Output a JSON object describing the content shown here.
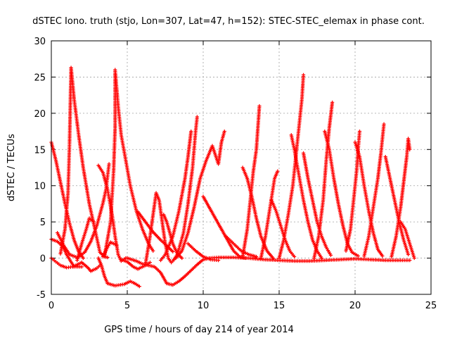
{
  "chart_data": {
    "type": "scatter",
    "title": "dSTEC Iono. truth (stjo, Lon=307, Lat=47, h=152): STEC-STEC_elemax in phase cont.",
    "xlabel": "GPS time / hours of day 214 of year 2014",
    "ylabel": "dSTEC  / TECUs",
    "xlim": [
      0,
      25
    ],
    "ylim": [
      -5,
      30
    ],
    "xticks": [
      "0",
      "5",
      "10",
      "15",
      "20",
      "25"
    ],
    "yticks": [
      "-5",
      "0",
      "5",
      "10",
      "15",
      "20",
      "25",
      "30"
    ],
    "grid": true,
    "marker": "+",
    "color": "#ff0000",
    "series": [
      {
        "points": [
          [
            0.0,
            16.0
          ],
          [
            0.3,
            13.5
          ],
          [
            0.6,
            10.5
          ],
          [
            0.9,
            7.5
          ],
          [
            1.2,
            4.8
          ],
          [
            1.5,
            2.5
          ],
          [
            1.8,
            0.9
          ],
          [
            2.1,
            0.0
          ]
        ]
      },
      {
        "points": [
          [
            0.0,
            2.6
          ],
          [
            0.4,
            2.3
          ],
          [
            0.8,
            1.5
          ],
          [
            1.0,
            0.5
          ],
          [
            1.5,
            -1.2
          ],
          [
            2.0,
            -1.2
          ]
        ]
      },
      {
        "points": [
          [
            0.0,
            0.0
          ],
          [
            0.3,
            -0.5
          ],
          [
            0.6,
            -1.0
          ],
          [
            1.0,
            -1.3
          ],
          [
            1.4,
            -1.2
          ],
          [
            1.8,
            -0.8
          ],
          [
            2.0,
            -0.6
          ]
        ]
      },
      {
        "points": [
          [
            0.4,
            3.5
          ],
          [
            0.8,
            1.8
          ],
          [
            1.2,
            0.5
          ],
          [
            1.7,
            0.1
          ],
          [
            2.2,
            0.8
          ],
          [
            2.6,
            2.3
          ],
          [
            3.0,
            4.5
          ],
          [
            3.4,
            7.6
          ],
          [
            3.6,
            9.5
          ],
          [
            3.8,
            13.0
          ]
        ]
      },
      {
        "points": [
          [
            0.6,
            0.6
          ],
          [
            0.9,
            4.0
          ],
          [
            1.1,
            9.0
          ],
          [
            1.2,
            16.0
          ],
          [
            1.3,
            26.3
          ],
          [
            1.5,
            22.0
          ],
          [
            1.8,
            17.0
          ],
          [
            2.1,
            12.5
          ],
          [
            2.5,
            7.5
          ],
          [
            2.9,
            3.7
          ],
          [
            3.2,
            0.8
          ],
          [
            3.5,
            0.2
          ],
          [
            3.7,
            0.1
          ]
        ]
      },
      {
        "points": [
          [
            2.0,
            -0.6
          ],
          [
            2.4,
            -1.3
          ],
          [
            2.6,
            -1.8
          ],
          [
            3.0,
            -1.4
          ],
          [
            3.2,
            -1.0
          ]
        ]
      },
      {
        "points": [
          [
            1.7,
            -0.3
          ],
          [
            2.0,
            2.0
          ],
          [
            2.3,
            4.0
          ],
          [
            2.5,
            5.5
          ],
          [
            2.8,
            5.0
          ]
        ]
      },
      {
        "points": [
          [
            3.1,
            12.8
          ],
          [
            3.4,
            11.8
          ],
          [
            3.7,
            9.5
          ],
          [
            4.0,
            6.0
          ],
          [
            4.2,
            3.0
          ],
          [
            4.4,
            0.5
          ],
          [
            4.6,
            -0.4
          ],
          [
            4.9,
            0.0
          ]
        ]
      },
      {
        "points": [
          [
            3.4,
            0.2
          ],
          [
            3.7,
            1.5
          ],
          [
            3.9,
            2.2
          ],
          [
            4.1,
            2.0
          ],
          [
            4.3,
            1.8
          ]
        ]
      },
      {
        "points": [
          [
            3.1,
            0.0
          ],
          [
            3.3,
            -1.0
          ],
          [
            3.5,
            -2.5
          ],
          [
            3.7,
            -3.5
          ],
          [
            4.2,
            -3.8
          ],
          [
            4.8,
            -3.6
          ],
          [
            5.2,
            -3.2
          ],
          [
            5.5,
            -3.5
          ],
          [
            5.8,
            -3.9
          ]
        ]
      },
      {
        "points": [
          [
            3.5,
            0.3
          ],
          [
            3.9,
            5.0
          ],
          [
            4.1,
            12.0
          ],
          [
            4.2,
            18.0
          ],
          [
            4.2,
            26.0
          ],
          [
            4.4,
            21.0
          ],
          [
            4.6,
            17.0
          ],
          [
            4.9,
            13.5
          ],
          [
            5.2,
            10.0
          ],
          [
            5.6,
            6.5
          ],
          [
            6.0,
            4.0
          ],
          [
            6.4,
            2.0
          ],
          [
            6.7,
            1.0
          ]
        ]
      },
      {
        "points": [
          [
            4.6,
            -0.2
          ],
          [
            5.0,
            -0.5
          ],
          [
            5.4,
            -1.2
          ],
          [
            5.7,
            -1.5
          ],
          [
            6.2,
            -1.0
          ],
          [
            6.5,
            -0.6
          ]
        ]
      },
      {
        "points": [
          [
            5.7,
            6.4
          ],
          [
            6.2,
            5.0
          ],
          [
            6.7,
            3.6
          ],
          [
            7.2,
            2.5
          ],
          [
            7.7,
            1.5
          ],
          [
            8.0,
            0.9
          ]
        ]
      },
      {
        "points": [
          [
            5.0,
            0.0
          ],
          [
            5.6,
            -0.4
          ],
          [
            6.0,
            -0.8
          ],
          [
            6.4,
            -1.0
          ],
          [
            6.8,
            -1.2
          ],
          [
            7.2,
            -2.0
          ],
          [
            7.6,
            -3.5
          ],
          [
            8.0,
            -3.7
          ],
          [
            8.4,
            -3.2
          ],
          [
            8.8,
            -2.5
          ],
          [
            9.2,
            -1.7
          ],
          [
            9.6,
            -0.9
          ],
          [
            10.0,
            -0.2
          ],
          [
            10.4,
            0.0
          ]
        ]
      },
      {
        "points": [
          [
            6.2,
            -0.8
          ],
          [
            6.5,
            3.0
          ],
          [
            6.7,
            6.0
          ],
          [
            6.9,
            9.0
          ],
          [
            7.1,
            8.0
          ],
          [
            7.3,
            5.0
          ],
          [
            7.5,
            2.0
          ],
          [
            7.7,
            0.0
          ],
          [
            7.9,
            -0.6
          ]
        ]
      },
      {
        "points": [
          [
            7.4,
            6.0
          ],
          [
            7.6,
            5.0
          ],
          [
            7.8,
            3.5
          ],
          [
            8.0,
            2.0
          ],
          [
            8.3,
            0.6
          ],
          [
            8.6,
            0.0
          ]
        ]
      },
      {
        "points": [
          [
            7.2,
            -0.3
          ],
          [
            7.5,
            0.5
          ],
          [
            8.0,
            3.0
          ],
          [
            8.4,
            6.5
          ],
          [
            8.8,
            11.0
          ],
          [
            9.0,
            14.0
          ],
          [
            9.2,
            17.5
          ]
        ]
      },
      {
        "points": [
          [
            8.0,
            -0.4
          ],
          [
            8.3,
            0.5
          ],
          [
            8.7,
            3.5
          ],
          [
            9.0,
            7.5
          ],
          [
            9.3,
            12.5
          ],
          [
            9.4,
            15.0
          ],
          [
            9.5,
            17.5
          ],
          [
            9.6,
            19.5
          ]
        ]
      },
      {
        "points": [
          [
            9.0,
            2.0
          ],
          [
            9.5,
            1.0
          ],
          [
            10.0,
            0.2
          ],
          [
            10.5,
            -0.2
          ],
          [
            11.0,
            -0.3
          ]
        ]
      },
      {
        "points": [
          [
            8.2,
            0.0
          ],
          [
            8.6,
            1.0
          ],
          [
            9.0,
            3.5
          ],
          [
            9.4,
            7.0
          ],
          [
            9.8,
            11.0
          ],
          [
            10.2,
            13.5
          ],
          [
            10.6,
            15.5
          ],
          [
            11.0,
            13.0
          ],
          [
            11.2,
            16.0
          ],
          [
            11.4,
            17.5
          ]
        ]
      },
      {
        "points": [
          [
            10.0,
            8.5
          ],
          [
            10.4,
            7.0
          ],
          [
            10.8,
            5.5
          ],
          [
            11.2,
            4.0
          ],
          [
            11.6,
            2.5
          ],
          [
            12.0,
            1.0
          ],
          [
            12.4,
            0.2
          ],
          [
            12.8,
            0.0
          ]
        ]
      },
      {
        "points": [
          [
            10.4,
            0.0
          ],
          [
            11.0,
            0.1
          ],
          [
            12.0,
            0.1
          ],
          [
            13.0,
            0.0
          ],
          [
            14.0,
            -0.2
          ],
          [
            15.0,
            -0.3
          ],
          [
            16.0,
            -0.4
          ],
          [
            17.0,
            -0.4
          ],
          [
            18.0,
            -0.3
          ],
          [
            19.0,
            -0.2
          ],
          [
            20.0,
            -0.1
          ],
          [
            21.0,
            -0.2
          ],
          [
            22.0,
            -0.3
          ],
          [
            23.0,
            -0.3
          ],
          [
            23.6,
            -0.3
          ]
        ]
      },
      {
        "points": [
          [
            11.5,
            3.0
          ],
          [
            12.0,
            2.0
          ],
          [
            12.5,
            1.0
          ],
          [
            13.0,
            0.5
          ],
          [
            13.5,
            0.2
          ]
        ]
      },
      {
        "points": [
          [
            12.6,
            0.2
          ],
          [
            12.9,
            4.0
          ],
          [
            13.1,
            8.0
          ],
          [
            13.3,
            12.0
          ],
          [
            13.5,
            15.0
          ],
          [
            13.6,
            18.0
          ],
          [
            13.7,
            21.0
          ]
        ]
      },
      {
        "points": [
          [
            12.6,
            12.5
          ],
          [
            12.9,
            11.0
          ],
          [
            13.2,
            8.5
          ],
          [
            13.5,
            5.5
          ],
          [
            13.8,
            3.0
          ],
          [
            14.2,
            1.0
          ],
          [
            14.6,
            0.0
          ]
        ]
      },
      {
        "points": [
          [
            13.8,
            0.0
          ],
          [
            14.1,
            3.0
          ],
          [
            14.4,
            7.0
          ],
          [
            14.7,
            11.0
          ],
          [
            14.9,
            12.0
          ]
        ]
      },
      {
        "points": [
          [
            14.5,
            8.0
          ],
          [
            14.8,
            6.5
          ],
          [
            15.1,
            4.5
          ],
          [
            15.4,
            2.5
          ],
          [
            15.7,
            1.0
          ],
          [
            16.0,
            0.2
          ]
        ]
      },
      {
        "points": [
          [
            15.0,
            0.0
          ],
          [
            15.3,
            2.5
          ],
          [
            15.6,
            6.0
          ],
          [
            15.9,
            10.0
          ],
          [
            16.1,
            14.0
          ],
          [
            16.3,
            18.0
          ],
          [
            16.5,
            22.0
          ],
          [
            16.6,
            25.3
          ]
        ]
      },
      {
        "points": [
          [
            15.8,
            17.0
          ],
          [
            16.0,
            15.0
          ],
          [
            16.3,
            11.5
          ],
          [
            16.6,
            8.0
          ],
          [
            16.9,
            5.0
          ],
          [
            17.2,
            2.5
          ],
          [
            17.5,
            1.0
          ],
          [
            17.8,
            0.0
          ]
        ]
      },
      {
        "points": [
          [
            16.6,
            14.5
          ],
          [
            16.9,
            11.0
          ],
          [
            17.2,
            8.0
          ],
          [
            17.5,
            5.0
          ],
          [
            17.8,
            3.0
          ],
          [
            18.1,
            1.5
          ],
          [
            18.4,
            0.4
          ]
        ]
      },
      {
        "points": [
          [
            17.3,
            0.0
          ],
          [
            17.6,
            3.0
          ],
          [
            17.9,
            8.0
          ],
          [
            18.1,
            13.5
          ],
          [
            18.3,
            18.0
          ],
          [
            18.5,
            21.5
          ]
        ]
      },
      {
        "points": [
          [
            18.0,
            17.5
          ],
          [
            18.3,
            15.0
          ],
          [
            18.6,
            11.0
          ],
          [
            18.9,
            7.5
          ],
          [
            19.2,
            4.5
          ],
          [
            19.5,
            2.0
          ],
          [
            19.8,
            0.8
          ],
          [
            20.2,
            0.3
          ]
        ]
      },
      {
        "points": [
          [
            19.4,
            1.0
          ],
          [
            19.7,
            4.0
          ],
          [
            19.9,
            8.0
          ],
          [
            20.1,
            12.0
          ],
          [
            20.2,
            15.0
          ],
          [
            20.3,
            17.5
          ]
        ]
      },
      {
        "points": [
          [
            20.0,
            16.0
          ],
          [
            20.3,
            14.0
          ],
          [
            20.6,
            10.0
          ],
          [
            20.9,
            6.5
          ],
          [
            21.2,
            3.5
          ],
          [
            21.5,
            1.2
          ],
          [
            21.8,
            0.3
          ]
        ]
      },
      {
        "points": [
          [
            20.6,
            0.3
          ],
          [
            20.9,
            3.0
          ],
          [
            21.2,
            7.0
          ],
          [
            21.5,
            11.0
          ],
          [
            21.7,
            14.5
          ],
          [
            21.9,
            18.5
          ]
        ]
      },
      {
        "points": [
          [
            22.0,
            14.0
          ],
          [
            22.3,
            11.0
          ],
          [
            22.6,
            8.0
          ],
          [
            22.9,
            5.0
          ],
          [
            23.2,
            2.5
          ],
          [
            23.5,
            0.5
          ]
        ]
      },
      {
        "points": [
          [
            22.4,
            0.2
          ],
          [
            22.7,
            3.0
          ],
          [
            23.0,
            7.0
          ],
          [
            23.2,
            10.5
          ],
          [
            23.4,
            14.0
          ],
          [
            23.5,
            16.5
          ],
          [
            23.6,
            15.0
          ]
        ]
      },
      {
        "points": [
          [
            23.0,
            5.0
          ],
          [
            23.3,
            4.0
          ],
          [
            23.6,
            2.0
          ],
          [
            23.9,
            0.0
          ]
        ]
      }
    ]
  }
}
